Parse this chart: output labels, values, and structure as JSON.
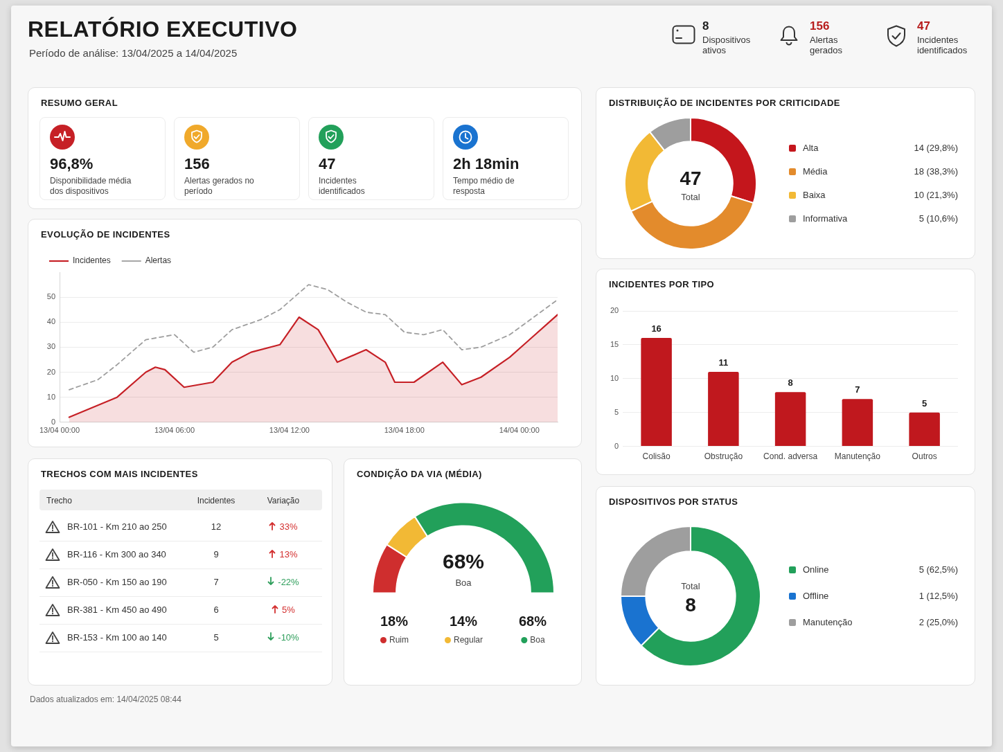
{
  "chart_data": [
    {
      "type": "other",
      "title": "RELATÓRIO EXECUTIVO",
      "subtitle": "Período de análise: 13/04/2025 a 14/04/2025",
      "categories": [
        "Dispositivos ativos",
        "Alertas gerados",
        "Incidentes identificados"
      ],
      "values": [
        8,
        156,
        47
      ],
      "colors": [
        "#222222",
        "#b71c1c",
        "#b71c1c"
      ],
      "data_labels": true
    },
    {
      "type": "other",
      "title": "RESUMO GERAL",
      "categories": [
        "Disponibilidade média dos dispositivos",
        "Alertas gerados no período",
        "Incidentes identificados",
        "Tempo médio de resposta"
      ],
      "value_labels": [
        "96,8%",
        "156",
        "47",
        "2h 18min"
      ]
    },
    {
      "type": "donut",
      "title": "DISTRIBUIÇÃO DE INCIDENTES POR CRITICIDADE",
      "categories": [
        "Alta",
        "Média",
        "Baixa",
        "Informativa"
      ],
      "values": [
        14,
        18,
        10,
        5
      ],
      "colors": [
        "#c4161c",
        "#e38b2c",
        "#f2b935",
        "#9e9e9e"
      ],
      "value_labels": [
        "14 (29,8%)",
        "18 (38,3%)",
        "10 (21,3%)",
        "5 (10,6%)"
      ],
      "annotations": [
        "47",
        "Total"
      ],
      "legend": "right"
    },
    {
      "type": "line",
      "title": "EVOLUÇÃO DE INCIDENTES",
      "series": [
        {
          "name": "Incidentes",
          "type": "area",
          "color": "#c62026",
          "x": [
            "--04-13T00:30",
            "--04-13T03:00",
            "--04-13T04:30",
            "--04-13T05:00",
            "--04-13T05:30",
            "--04-13T06:30",
            "--04-13T08:00",
            "--04-13T09:00",
            "--04-13T10:00",
            "--04-13T11:30",
            "--04-13T12:30",
            "--04-13T13:30",
            "--04-13T14:30",
            "--04-13T16:00",
            "--04-13T17:00",
            "--04-13T17:30",
            "--04-13T18:30",
            "--04-13T20:00",
            "--04-13T21:00",
            "--04-13T22:00",
            "--04-13T23:30",
            "--04-14T02:00"
          ],
          "values": [
            2,
            10,
            20,
            22,
            21,
            14,
            16,
            24,
            28,
            31,
            42,
            37,
            24,
            29,
            24,
            16,
            16,
            24,
            15,
            18,
            26,
            43
          ]
        },
        {
          "name": "Alertas",
          "type": "line",
          "color": "#9e9e9e",
          "line_style": "dashed",
          "x": [
            "--04-13T00:30",
            "--04-13T02:00",
            "--04-13T03:00",
            "--04-13T04:30",
            "--04-13T06:00",
            "--04-13T07:00",
            "--04-13T08:00",
            "--04-13T09:00",
            "--04-13T10:30",
            "--04-13T11:30",
            "--04-13T13:00",
            "--04-13T14:00",
            "--04-13T15:00",
            "--04-13T16:00",
            "--04-13T17:00",
            "--04-13T18:00",
            "--04-13T19:00",
            "--04-13T20:00",
            "--04-13T21:00",
            "--04-13T22:00",
            "--04-13T23:30",
            "--04-14T02:00"
          ],
          "values": [
            13,
            17,
            23,
            33,
            35,
            28,
            30,
            37,
            41,
            45,
            55,
            53,
            48,
            44,
            43,
            36,
            35,
            37,
            29,
            30,
            35,
            49
          ]
        }
      ],
      "xlim": [
        "--04-13T00:00",
        "--04-14T02:00"
      ],
      "xticks": [
        {
          "value": "--04-13T00:00",
          "label": "13/04 00:00"
        },
        {
          "value": "--04-13T06:00",
          "label": "13/04 06:00"
        },
        {
          "value": "--04-13T12:00",
          "label": "13/04 12:00"
        },
        {
          "value": "--04-13T18:00",
          "label": "13/04 18:00"
        },
        {
          "value": "--04-14T00:00",
          "label": "14/04 00:00"
        }
      ],
      "ylim": [
        0,
        60
      ],
      "yticks": [
        0,
        10,
        20,
        30,
        40,
        50
      ],
      "grid": "y",
      "legend": "top left",
      "marker": "none"
    },
    {
      "type": "bar",
      "title": "INCIDENTES POR TIPO",
      "categories": [
        "Colisão",
        "Obstrução",
        "Cond. adversa",
        "Manutenção",
        "Outros"
      ],
      "values": [
        16,
        11,
        8,
        7,
        5
      ],
      "color": "#c0181e",
      "ylim": [
        0,
        20
      ],
      "yticks": [
        0,
        5,
        10,
        15,
        20
      ],
      "grid": "y",
      "data_labels": true
    },
    {
      "type": "other",
      "title": "TRECHOS COM MAIS INCIDENTES",
      "xlabel": "Trecho",
      "categories": [
        "BR-101 - Km 210 ao 250",
        "BR-116 - Km 300 ao 340",
        "BR-050 - Km 150 ao 190",
        "BR-381 - Km 450 ao 490",
        "BR-153 - Km 100 ao 140"
      ],
      "series": [
        {
          "name": "Incidentes",
          "values": [
            12,
            9,
            7,
            6,
            5
          ]
        },
        {
          "name": "Variação",
          "values": [
            33,
            13,
            -22,
            5,
            -10
          ],
          "value_labels": [
            "33%",
            "13%",
            "-22%",
            "5%",
            "-10%"
          ]
        }
      ],
      "colors": [
        "#d32f2f",
        "#d32f2f",
        "#2e9e5b",
        "#d32f2f",
        "#2e9e5b"
      ],
      "data_labels": true,
      "annotations": [
        "Dados atualizados em: 14/04/2025 08:44"
      ]
    },
    {
      "type": "donut",
      "title": "CONDIÇÃO DA VIA (MÉDIA)",
      "categories": [
        "Ruim",
        "Regular",
        "Boa"
      ],
      "values": [
        18,
        14,
        68
      ],
      "colors": [
        "#cf2e2e",
        "#f2b935",
        "#22a05a"
      ],
      "value_labels": [
        "18%",
        "14%",
        "68%"
      ],
      "annotations": [
        "68%",
        "Boa"
      ],
      "legend": "bottom"
    },
    {
      "type": "donut",
      "title": "DISPOSITIVOS POR STATUS",
      "categories": [
        "Online",
        "Offline",
        "Manutenção"
      ],
      "values": [
        5,
        1,
        2
      ],
      "colors": [
        "#22a05a",
        "#1a73d0",
        "#9e9e9e"
      ],
      "value_labels": [
        "5 (62,5%)",
        "1 (12,5%)",
        "2 (25,0%)"
      ],
      "annotations": [
        "Total",
        "8"
      ],
      "legend": "right"
    }
  ]
}
